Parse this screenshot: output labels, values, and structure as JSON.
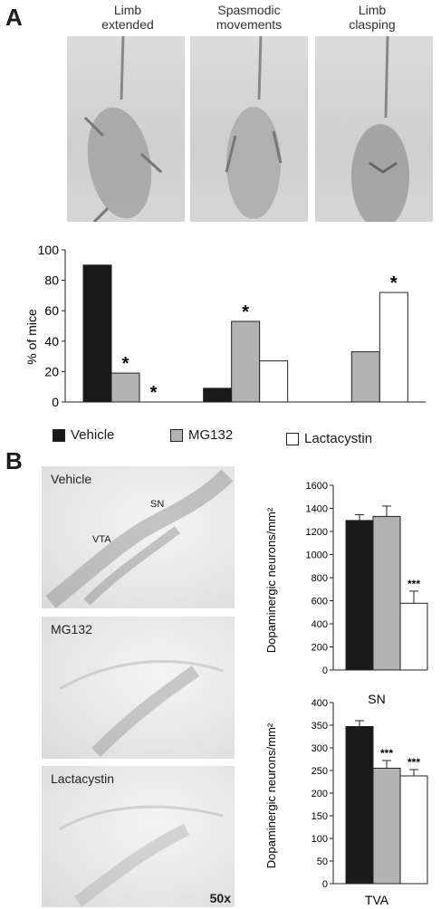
{
  "panel_a": {
    "letter": "A",
    "photos": [
      {
        "caption_line1": "Limb",
        "caption_line2": "extended"
      },
      {
        "caption_line1": "Spasmodic",
        "caption_line2": "movements"
      },
      {
        "caption_line1": "Limb",
        "caption_line2": "clasping"
      }
    ]
  },
  "panel_b": {
    "letter": "B",
    "micrographs": [
      {
        "label": "Vehicle",
        "regions": [
          "SN",
          "VTA"
        ]
      },
      {
        "label": "MG132"
      },
      {
        "label": "Lactacystin",
        "magnification": "50x"
      }
    ]
  },
  "legend": {
    "items": [
      {
        "label": "Vehicle",
        "color": "#1a1a1a"
      },
      {
        "label": "MG132",
        "color": "#b3b3b3"
      },
      {
        "label": "Lactacystin",
        "color": "#ffffff"
      }
    ]
  },
  "chart_data": [
    {
      "type": "bar",
      "ylabel": "% of mice",
      "ylim": [
        0,
        100
      ],
      "yticks": [
        0,
        20,
        40,
        60,
        80,
        100
      ],
      "categories": [
        "Limb extended",
        "Spasmodic movements",
        "Limb clasping"
      ],
      "series": [
        {
          "name": "Vehicle",
          "color": "#1a1a1a",
          "values": [
            90,
            9,
            0
          ]
        },
        {
          "name": "MG132",
          "color": "#b3b3b3",
          "values": [
            19,
            53,
            33
          ]
        },
        {
          "name": "Lactacystin",
          "color": "#ffffff",
          "values": [
            0,
            27,
            72
          ]
        }
      ],
      "annotations": [
        {
          "category": 0,
          "series": 1,
          "text": "*"
        },
        {
          "category": 0,
          "series": 2,
          "text": "*"
        },
        {
          "category": 1,
          "series": 1,
          "text": "*"
        },
        {
          "category": 2,
          "series": 2,
          "text": "*"
        }
      ]
    },
    {
      "type": "bar",
      "xlabel": "SN",
      "ylabel": "Dopaminergic neurons/mm²",
      "ylim": [
        0,
        1600
      ],
      "yticks": [
        0,
        200,
        400,
        600,
        800,
        1000,
        1200,
        1400,
        1600
      ],
      "series": [
        {
          "name": "Vehicle",
          "color": "#1a1a1a",
          "value": 1295,
          "error": 50
        },
        {
          "name": "MG132",
          "color": "#b3b3b3",
          "value": 1330,
          "error": 90
        },
        {
          "name": "Lactacystin",
          "color": "#ffffff",
          "value": 578,
          "error": 105,
          "annotation": "***"
        }
      ]
    },
    {
      "type": "bar",
      "xlabel": "TVA",
      "ylabel": "Dopaminergic neurons/mm²",
      "ylim": [
        0,
        400
      ],
      "yticks": [
        0,
        50,
        100,
        150,
        200,
        250,
        300,
        350,
        400
      ],
      "series": [
        {
          "name": "Vehicle",
          "color": "#1a1a1a",
          "value": 347,
          "error": 13
        },
        {
          "name": "MG132",
          "color": "#b3b3b3",
          "value": 255,
          "error": 17,
          "annotation": "***"
        },
        {
          "name": "Lactacystin",
          "color": "#ffffff",
          "value": 238,
          "error": 14,
          "annotation": "***"
        }
      ]
    }
  ]
}
